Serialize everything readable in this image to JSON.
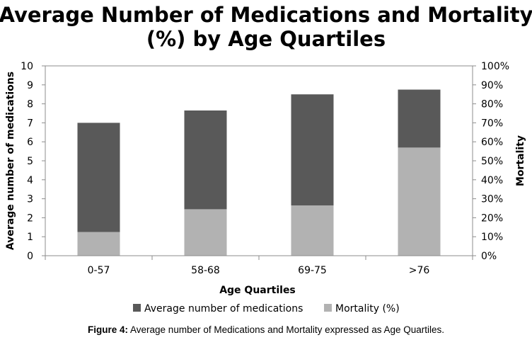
{
  "chart_data": {
    "type": "bar",
    "stacked": false,
    "title": "Average Number of Medications and Mortality (%) by Age Quartiles",
    "title_lines": [
      "Average Number of Medications and Mortality",
      "(%) by Age Quartiles"
    ],
    "xlabel": "Age Quartiles",
    "ylabel": "Average number of medications",
    "y2label": "Mortality",
    "categories": [
      "0-57",
      "58-68",
      "69-75",
      ">76"
    ],
    "ylim": [
      0,
      10
    ],
    "y2lim": [
      0,
      100
    ],
    "yticks": [
      0,
      1,
      2,
      3,
      4,
      5,
      6,
      7,
      8,
      9,
      10
    ],
    "y2ticks": [
      "0%",
      "10%",
      "20%",
      "30%",
      "40%",
      "50%",
      "60%",
      "70%",
      "80%",
      "90%",
      "100%"
    ],
    "grid": false,
    "legend_position": "bottom",
    "series": [
      {
        "name": "Average number of medications",
        "axis": "left",
        "values": [
          7.0,
          7.65,
          8.5,
          8.75
        ],
        "color": "#595959"
      },
      {
        "name": "Mortality (%)",
        "axis": "right",
        "values": [
          12.5,
          24.5,
          26.5,
          57.0
        ],
        "color": "#b2b2b2"
      }
    ]
  },
  "caption": {
    "label": "Figure 4:",
    "text": "Average number of Medications and Mortality expressed as Age Quartiles."
  }
}
